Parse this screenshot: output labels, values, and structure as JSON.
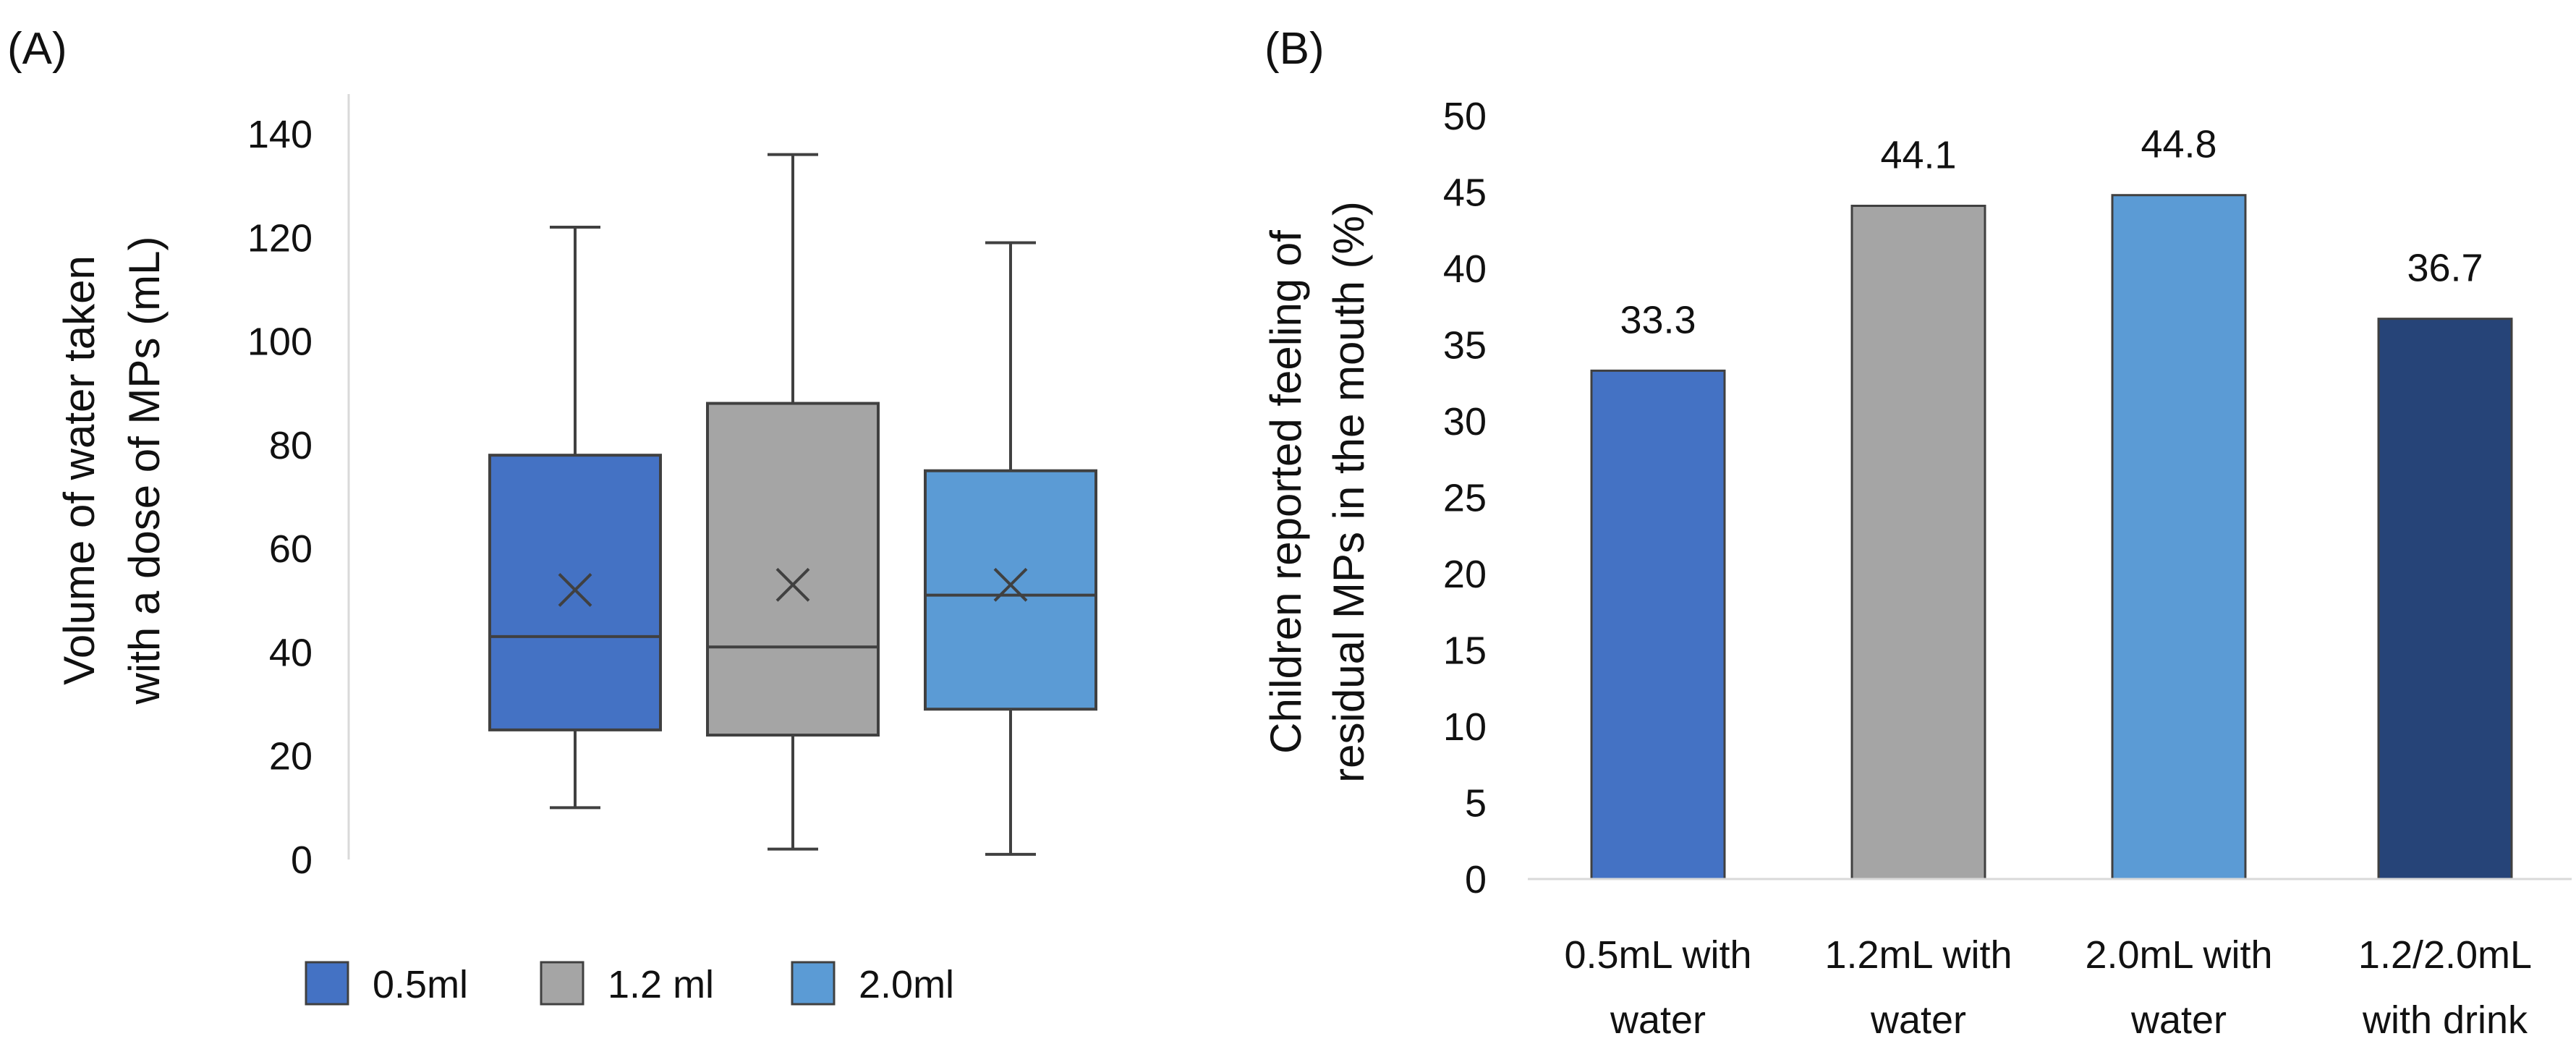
{
  "chart_data": [
    {
      "type": "box",
      "panel_label": "(A)",
      "ylabel_lines": [
        "Volume of water taken",
        "with a dose of MPs (mL)"
      ],
      "ylim": [
        0,
        140
      ],
      "yticks": [
        0,
        20,
        40,
        60,
        80,
        100,
        120,
        140
      ],
      "grid": false,
      "legend_position": "bottom",
      "series": [
        {
          "name": "0.5ml",
          "color": "#4472c4",
          "whisker_low": 10,
          "q1": 25,
          "median": 43,
          "q3": 78,
          "whisker_high": 122,
          "mean": 52
        },
        {
          "name": "1.2 ml",
          "color": "#a5a5a5",
          "whisker_low": 2,
          "q1": 24,
          "median": 41,
          "q3": 88,
          "whisker_high": 136,
          "mean": 53
        },
        {
          "name": "2.0ml",
          "color": "#5b9bd5",
          "whisker_low": 1,
          "q1": 29,
          "median": 51,
          "q3": 75,
          "whisker_high": 119,
          "mean": 53
        }
      ]
    },
    {
      "type": "bar",
      "panel_label": "(B)",
      "ylabel_lines": [
        "Children reported feeling of",
        "residual MPs in the mouth (%)"
      ],
      "ylim": [
        0,
        50
      ],
      "yticks": [
        0,
        5,
        10,
        15,
        20,
        25,
        30,
        35,
        40,
        45,
        50
      ],
      "grid": false,
      "categories": [
        [
          "0.5mL with",
          "water"
        ],
        [
          "1.2mL with",
          "water"
        ],
        [
          "2.0mL with",
          "water"
        ],
        [
          "1.2/2.0mL",
          "with drink"
        ]
      ],
      "values": [
        33.3,
        44.1,
        44.8,
        36.7
      ],
      "value_labels": [
        "33.3",
        "44.1",
        "44.8",
        "36.7"
      ],
      "colors": [
        "#4472c4",
        "#a5a5a5",
        "#5b9bd5",
        "#264478"
      ]
    }
  ]
}
